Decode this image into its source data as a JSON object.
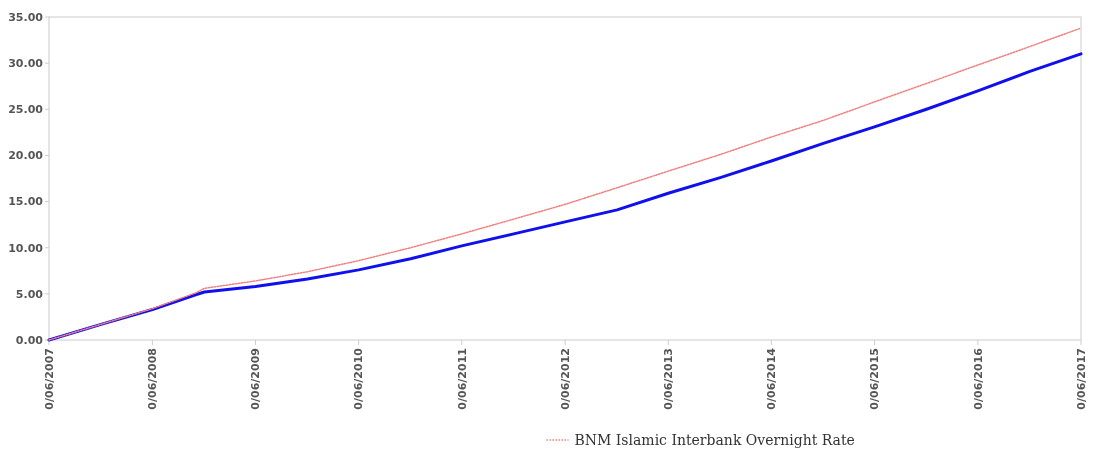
{
  "chart_data": {
    "type": "line",
    "x": [
      "2007-06-30",
      "2007-12-31",
      "2008-06-30",
      "2008-11-30",
      "2008-12-31",
      "2009-06-30",
      "2009-12-31",
      "2010-06-30",
      "2010-12-31",
      "2011-06-30",
      "2011-12-31",
      "2012-06-30",
      "2012-12-31",
      "2013-06-30",
      "2013-12-31",
      "2014-06-30",
      "2014-12-31",
      "2015-06-30",
      "2015-12-31",
      "2016-06-30",
      "2016-12-31",
      "2017-06-30"
    ],
    "series": [
      {
        "color": "#1010ee",
        "line_style": "solid",
        "values": [
          0,
          1.7,
          3.3,
          4.9,
          5.2,
          5.8,
          6.6,
          7.6,
          8.8,
          10.2,
          11.5,
          12.8,
          14.1,
          15.9,
          17.6,
          19.4,
          21.3,
          23.1,
          25.0,
          27.0,
          29.1,
          31.0
        ]
      },
      {
        "name": "BNM Islamic Interbank Overnight Rate",
        "color": "#f08080",
        "line_style": "dotted",
        "values": [
          0,
          1.7,
          3.4,
          5.1,
          5.6,
          6.4,
          7.4,
          8.6,
          10.0,
          11.5,
          13.1,
          14.7,
          16.5,
          18.3,
          20.1,
          22.0,
          23.8,
          25.8,
          27.8,
          29.8,
          31.8,
          33.8
        ]
      }
    ],
    "xlim": [
      "2007-06-30",
      "2017-06-30"
    ],
    "xticks": [
      {
        "value": "2007-06-30",
        "label": "0/06/2007"
      },
      {
        "value": "2008-06-30",
        "label": "0/06/2008"
      },
      {
        "value": "2009-06-30",
        "label": "0/06/2009"
      },
      {
        "value": "2010-06-30",
        "label": "0/06/2010"
      },
      {
        "value": "2011-06-30",
        "label": "0/06/2011"
      },
      {
        "value": "2012-06-30",
        "label": "0/06/2012"
      },
      {
        "value": "2013-06-30",
        "label": "0/06/2013"
      },
      {
        "value": "2014-06-30",
        "label": "0/06/2014"
      },
      {
        "value": "2015-06-30",
        "label": "0/06/2015"
      },
      {
        "value": "2016-06-30",
        "label": "0/06/2016"
      },
      {
        "value": "2017-06-30",
        "label": "0/06/2017"
      }
    ],
    "ylim": [
      0,
      35
    ],
    "yticks": [
      {
        "value": 0,
        "label": "0.00"
      },
      {
        "value": 5,
        "label": "5.00"
      },
      {
        "value": 10,
        "label": "10.00"
      },
      {
        "value": 15,
        "label": "15.00"
      },
      {
        "value": 20,
        "label": "20.00"
      },
      {
        "value": 25,
        "label": "25.00"
      },
      {
        "value": 30,
        "label": "30.00"
      },
      {
        "value": 35,
        "label": "35.00"
      }
    ],
    "grid": false,
    "legend": "bottom"
  }
}
